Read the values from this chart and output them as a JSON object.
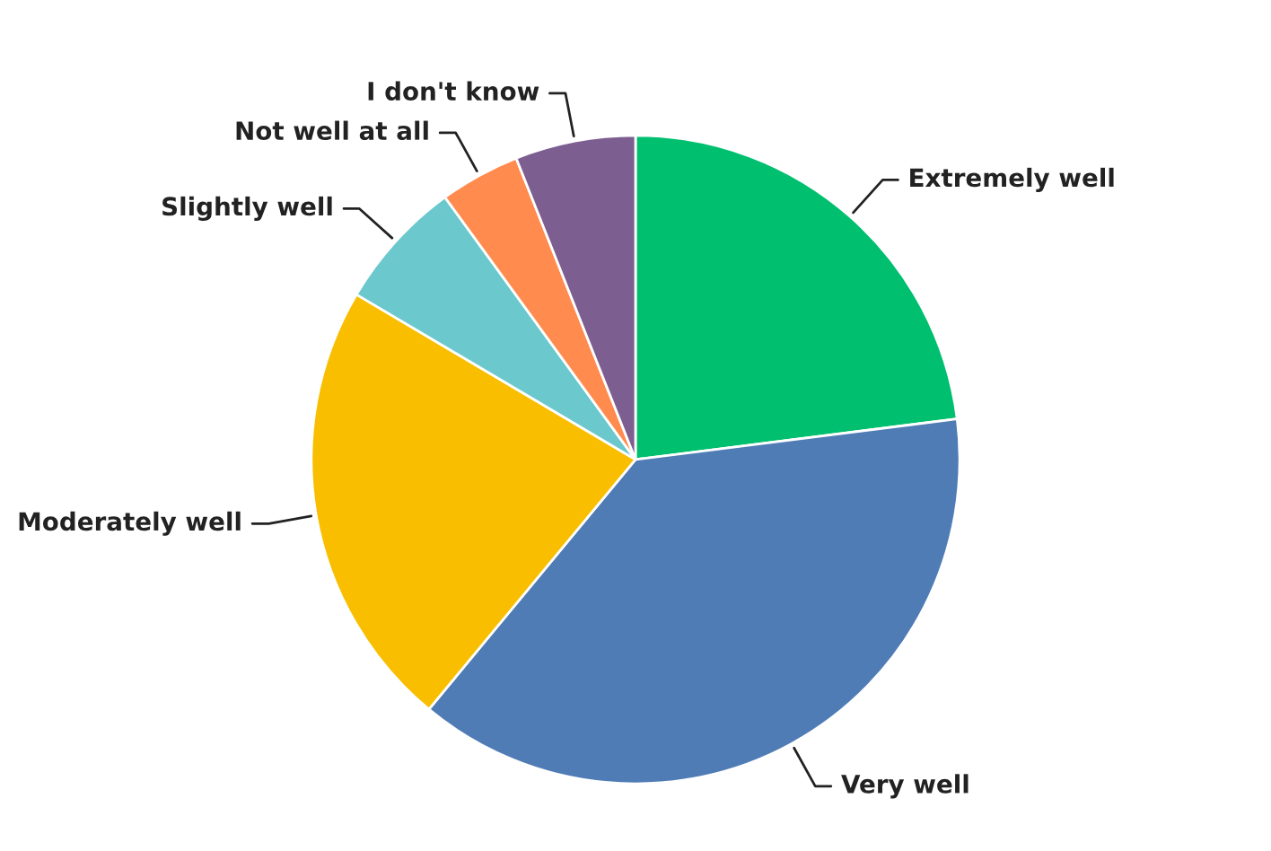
{
  "chart_data": {
    "type": "pie",
    "categories": [
      "Extremely well",
      "Very well",
      "Moderately well",
      "Slightly well",
      "Not well at all",
      "I don't know"
    ],
    "values": [
      23,
      38,
      22.5,
      6.5,
      4,
      6
    ],
    "colors": [
      "#00bf6f",
      "#507cb6",
      "#f9be00",
      "#6bc8cd",
      "#ff8b4f",
      "#7d5e90"
    ]
  }
}
